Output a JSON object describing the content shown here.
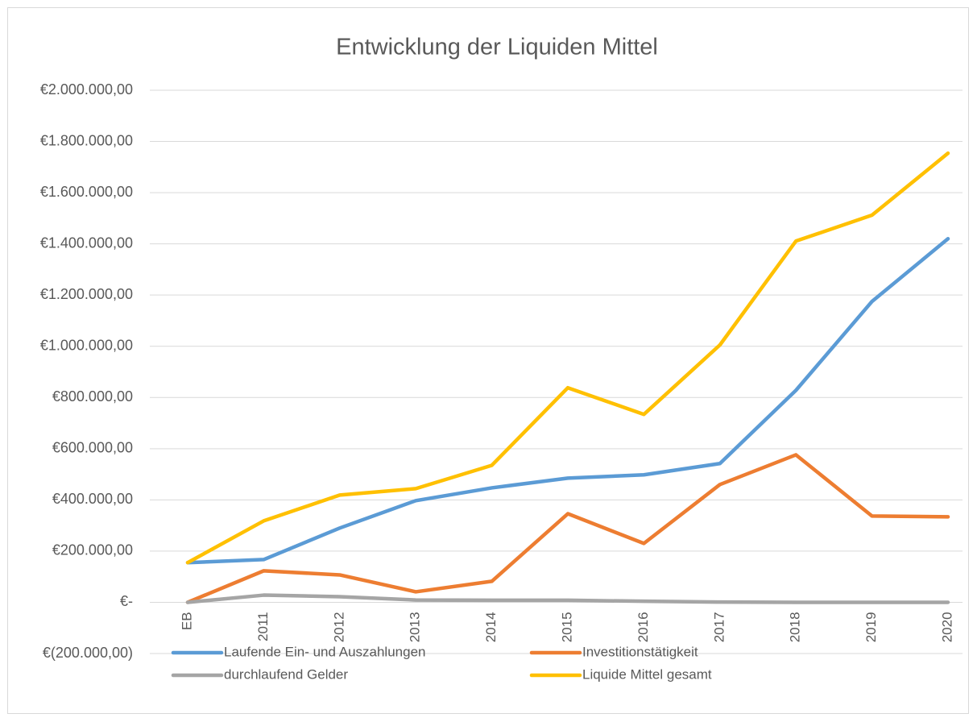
{
  "chart_data": {
    "type": "line",
    "title": "Entwicklung der Liquiden Mittel",
    "categories": [
      "EB",
      "2011",
      "2012",
      "2013",
      "2014",
      "2015",
      "2016",
      "2017",
      "2018",
      "2019",
      "2020"
    ],
    "series": [
      {
        "name": "Laufende Ein- und Auszahlungen",
        "color": "#5b9bd5",
        "values": [
          155000,
          167000,
          290000,
          397000,
          447000,
          485000,
          498000,
          542000,
          828000,
          1175000,
          1420000
        ]
      },
      {
        "name": "Investitionstätigkeit",
        "color": "#ed7d31",
        "values": [
          0,
          123000,
          107000,
          41000,
          82000,
          346000,
          230000,
          460000,
          576000,
          337000,
          334000
        ]
      },
      {
        "name": "durchlaufend Gelder",
        "color": "#a5a5a5",
        "values": [
          0,
          28000,
          22000,
          9000,
          8000,
          8000,
          4000,
          1000,
          0,
          0,
          0
        ]
      },
      {
        "name": "Liquide Mittel gesamt",
        "color": "#ffc000",
        "values": [
          155000,
          318000,
          419000,
          444000,
          535000,
          838000,
          734000,
          1005000,
          1411000,
          1512000,
          1754000
        ]
      }
    ],
    "ylim": [
      -200000,
      2000000
    ],
    "yticks": [
      {
        "value": -200000,
        "label": "€(200.000,00)"
      },
      {
        "value": 0,
        "label": "€-"
      },
      {
        "value": 200000,
        "label": "€200.000,00"
      },
      {
        "value": 400000,
        "label": "€400.000,00"
      },
      {
        "value": 600000,
        "label": "€600.000,00"
      },
      {
        "value": 800000,
        "label": "€800.000,00"
      },
      {
        "value": 1000000,
        "label": "€1.000.000,00"
      },
      {
        "value": 1200000,
        "label": "€1.200.000,00"
      },
      {
        "value": 1400000,
        "label": "€1.400.000,00"
      },
      {
        "value": 1600000,
        "label": "€1.600.000,00"
      },
      {
        "value": 1800000,
        "label": "€1.800.000,00"
      },
      {
        "value": 2000000,
        "label": "€2.000.000,00"
      }
    ],
    "grid": true,
    "legend": "bottom"
  }
}
